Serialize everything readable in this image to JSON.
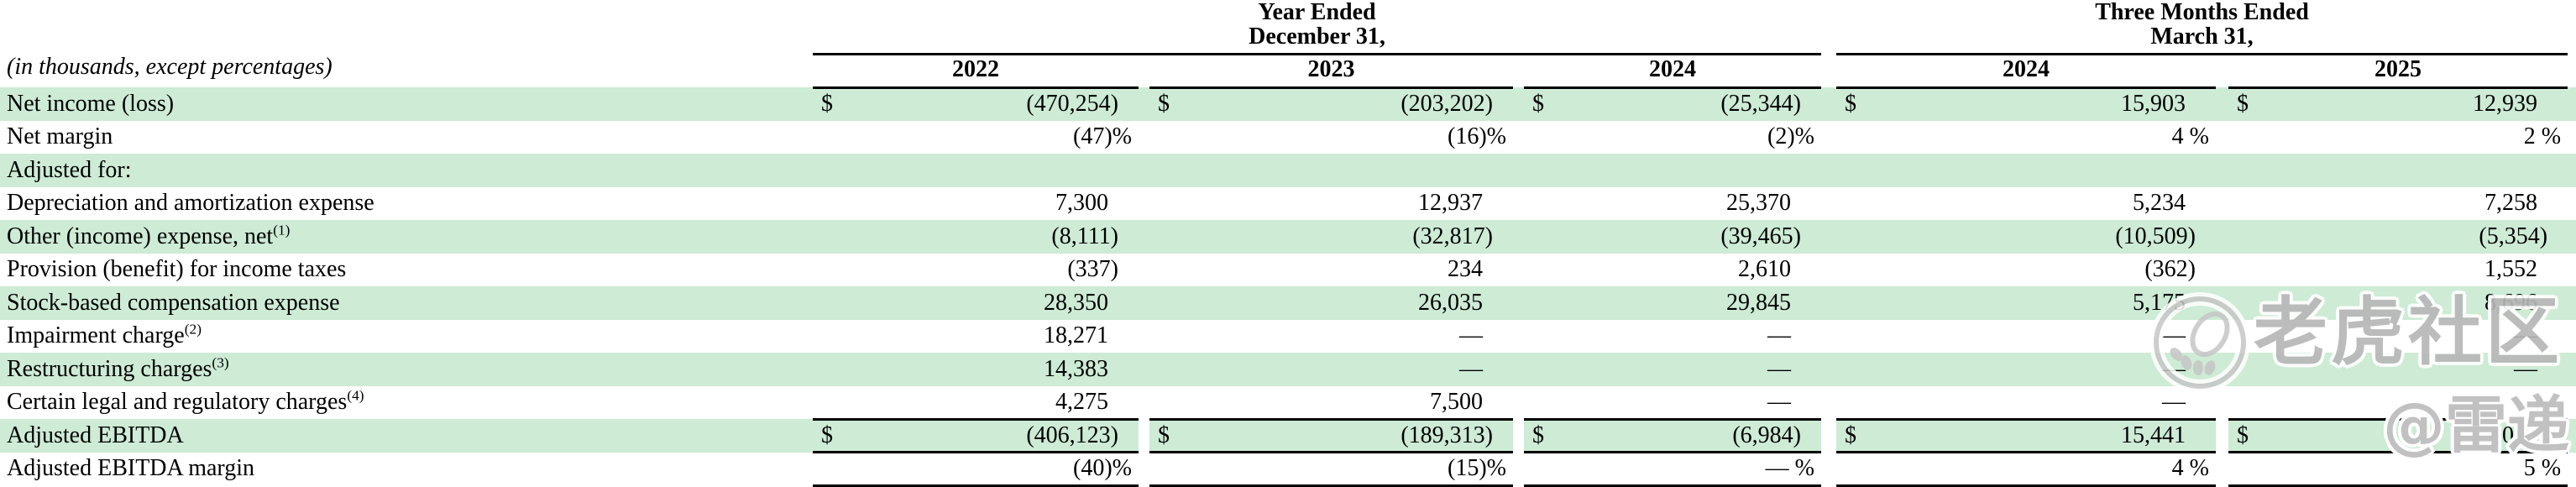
{
  "table": {
    "note": "(in thousands, except percentages)",
    "header_groups": [
      {
        "title": [
          "Year Ended",
          "December 31,"
        ],
        "columns": [
          "2022",
          "2023",
          "2024"
        ]
      },
      {
        "title": [
          "Three Months Ended",
          "March 31,"
        ],
        "columns": [
          "2024",
          "2025"
        ]
      }
    ],
    "rows": [
      {
        "label": "Net income (loss)",
        "dollar": true,
        "values": [
          "(470,254)",
          "(203,202)",
          "(25,344)",
          "15,903",
          "12,939"
        ]
      },
      {
        "label": "Net margin",
        "values": [
          "(47)%",
          "(16)%",
          "(2)%",
          "4 %",
          "2 %"
        ]
      },
      {
        "label": "Adjusted for:",
        "values": [
          "",
          "",
          "",
          "",
          ""
        ]
      },
      {
        "label": "Depreciation and amortization expense",
        "values": [
          "7,300",
          "12,937",
          "25,370",
          "5,234",
          "7,258"
        ]
      },
      {
        "label": "Other (income) expense, net",
        "sup": "(1)",
        "values": [
          "(8,111)",
          "(32,817)",
          "(39,465)",
          "(10,509)",
          "(5,354)"
        ]
      },
      {
        "label": "Provision (benefit) for income taxes",
        "values": [
          "(337)",
          "234",
          "2,610",
          "(362)",
          "1,552"
        ]
      },
      {
        "label": "Stock-based compensation expense",
        "values": [
          "28,350",
          "26,035",
          "29,845",
          "5,175",
          "8,696"
        ]
      },
      {
        "label": "Impairment charge",
        "sup": "(2)",
        "values": [
          "18,271",
          "—",
          "—",
          "—",
          "—"
        ]
      },
      {
        "label": "Restructuring charges",
        "sup": "(3)",
        "values": [
          "14,383",
          "—",
          "—",
          "—",
          "—"
        ]
      },
      {
        "label": "Certain legal and regulatory charges",
        "sup": "(4)",
        "values": [
          "4,275",
          "7,500",
          "—",
          "—",
          "—"
        ]
      },
      {
        "label": "Adjusted EBITDA",
        "dollar": true,
        "total": true,
        "values": [
          "(406,123)",
          "(189,313)",
          "(6,984)",
          "15,441",
          "25,091"
        ]
      },
      {
        "label": "Adjusted EBITDA margin",
        "final": true,
        "values": [
          "(40)%",
          "(15)%",
          "— %",
          "4 %",
          "5 %"
        ]
      }
    ]
  },
  "watermark": {
    "community_name": "老虎社区",
    "author_handle": "@雷递",
    "logo": "tiger-community-logo"
  },
  "colors": {
    "row_highlight_green": "#cdebd5",
    "rule_black": "#000000",
    "watermark_gray": "#b7b7b7"
  }
}
